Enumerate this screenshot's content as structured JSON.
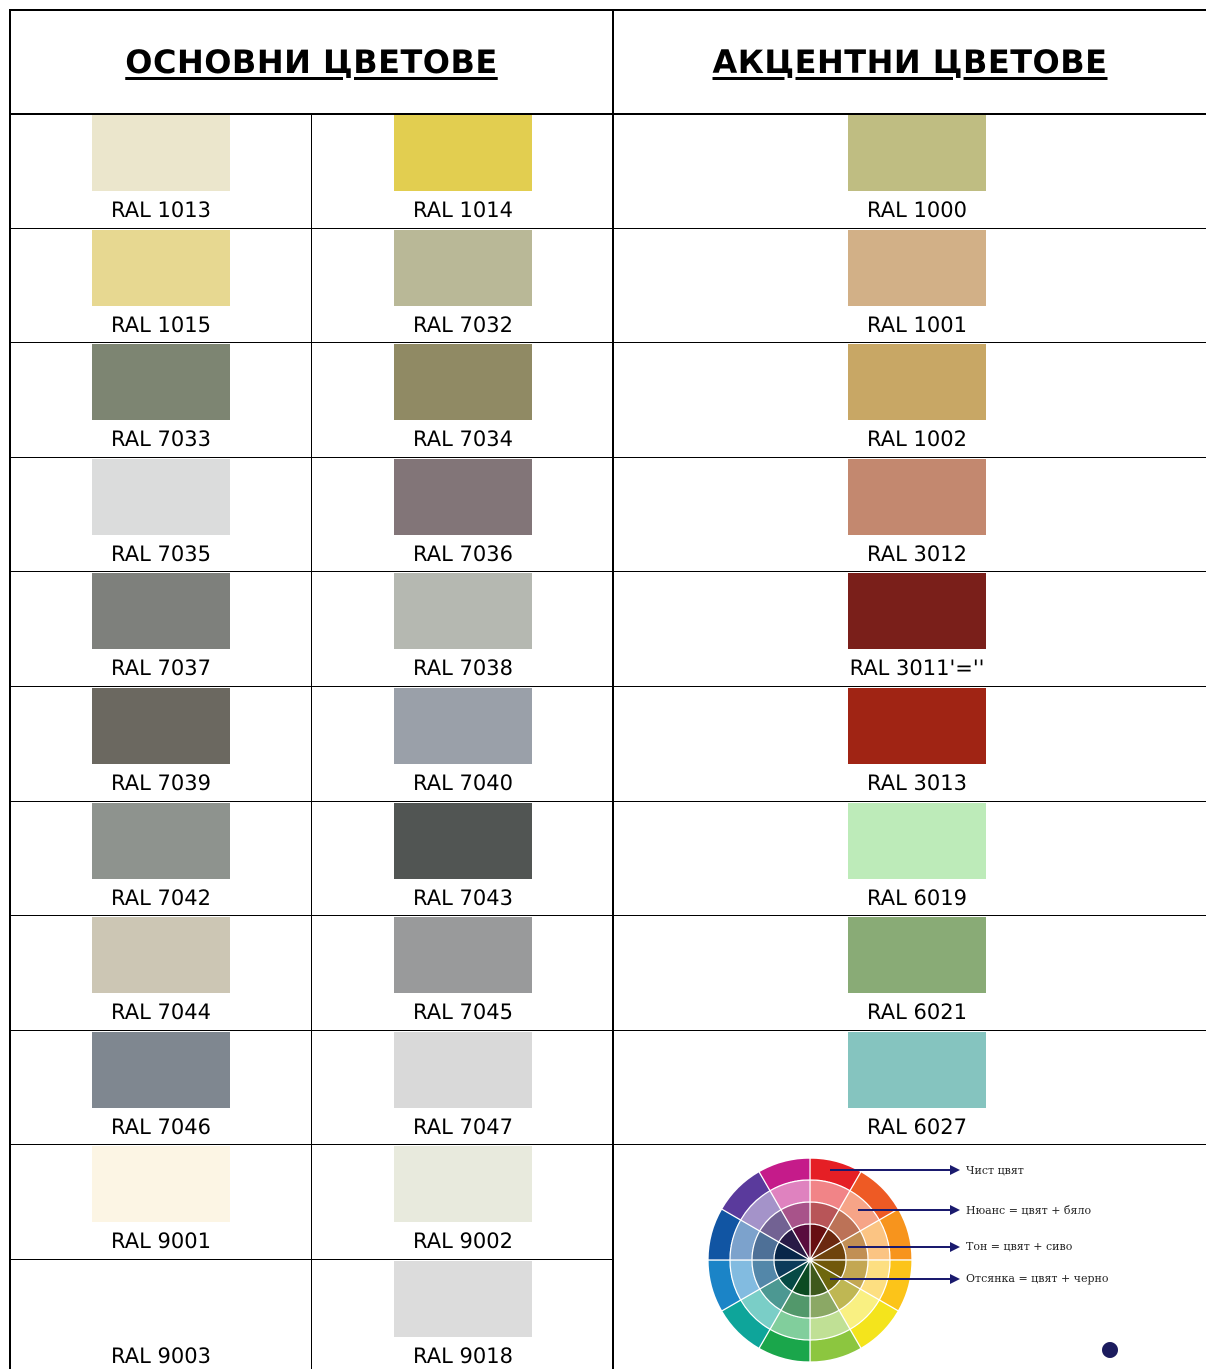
{
  "headers": {
    "main": "ОСНОВНИ ЦВЕТОВЕ",
    "accent": "АКЦЕНТНИ ЦВЕТОВЕ"
  },
  "main_rows": [
    [
      {
        "label": "RAL 1013",
        "color": "#ebe6cc"
      },
      {
        "label": "RAL 1014",
        "color": "#e2ce50"
      }
    ],
    [
      {
        "label": "RAL 1015",
        "color": "#e7d891"
      },
      {
        "label": "RAL 7032",
        "color": "#b9b897"
      }
    ],
    [
      {
        "label": "RAL 7033",
        "color": "#7d8572"
      },
      {
        "label": "RAL 7034",
        "color": "#908a64"
      }
    ],
    [
      {
        "label": "RAL 7035",
        "color": "#dbdcdc"
      },
      {
        "label": "RAL 7036",
        "color": "#827578"
      }
    ],
    [
      {
        "label": "RAL 7037",
        "color": "#7e807c"
      },
      {
        "label": "RAL 7038",
        "color": "#b5b8b1"
      }
    ],
    [
      {
        "label": "RAL 7039",
        "color": "#6b6860"
      },
      {
        "label": "RAL 7040",
        "color": "#9aa0a9"
      }
    ],
    [
      {
        "label": "RAL 7042",
        "color": "#8e938e"
      },
      {
        "label": "RAL 7043",
        "color": "#515553"
      }
    ],
    [
      {
        "label": "RAL 7044",
        "color": "#ccc6b4"
      },
      {
        "label": "RAL 7045",
        "color": "#999a9b"
      }
    ],
    [
      {
        "label": "RAL 7046",
        "color": "#7f8790"
      },
      {
        "label": "RAL 7047",
        "color": "#d9d9d9"
      }
    ],
    [
      {
        "label": "RAL 9001",
        "color": "#fcf5e4"
      },
      {
        "label": "RAL 9002",
        "color": "#e8eadd"
      }
    ],
    [
      {
        "label": "RAL 9003",
        "color": "#ffffff"
      },
      {
        "label": "RAL 9018",
        "color": "#dcdcdc"
      }
    ]
  ],
  "accent_rows": [
    {
      "label": "RAL 1000",
      "color": "#bfbd82"
    },
    {
      "label": "RAL 1001",
      "color": "#d2b087"
    },
    {
      "label": "RAL 1002",
      "color": "#c8a765"
    },
    {
      "label": "RAL 3012",
      "color": "#c3886f"
    },
    {
      "label": "RAL 3011'=''",
      "color": "#7a1f1a"
    },
    {
      "label": "RAL 3013",
      "color": "#a02414"
    },
    {
      "label": "RAL 6019",
      "color": "#bdebb9"
    },
    {
      "label": "RAL 6021",
      "color": "#89ab76"
    },
    {
      "label": "RAL 6027",
      "color": "#85c4bf"
    }
  ],
  "wheel": {
    "labels": [
      "Чист цвят",
      "Нюанс = цвят + бяло",
      "Тон = цвят + сиво",
      "Отсянка = цвят + черно"
    ],
    "hues": [
      "#e51f25",
      "#ee5a24",
      "#f7941d",
      "#fcc419",
      "#f4e41c",
      "#8cc63f",
      "#1aa64b",
      "#0ea59a",
      "#1b84c7",
      "#1155a3",
      "#5a3a9c",
      "#c51b8a"
    ],
    "pointer_color": "#1a1a6e"
  }
}
